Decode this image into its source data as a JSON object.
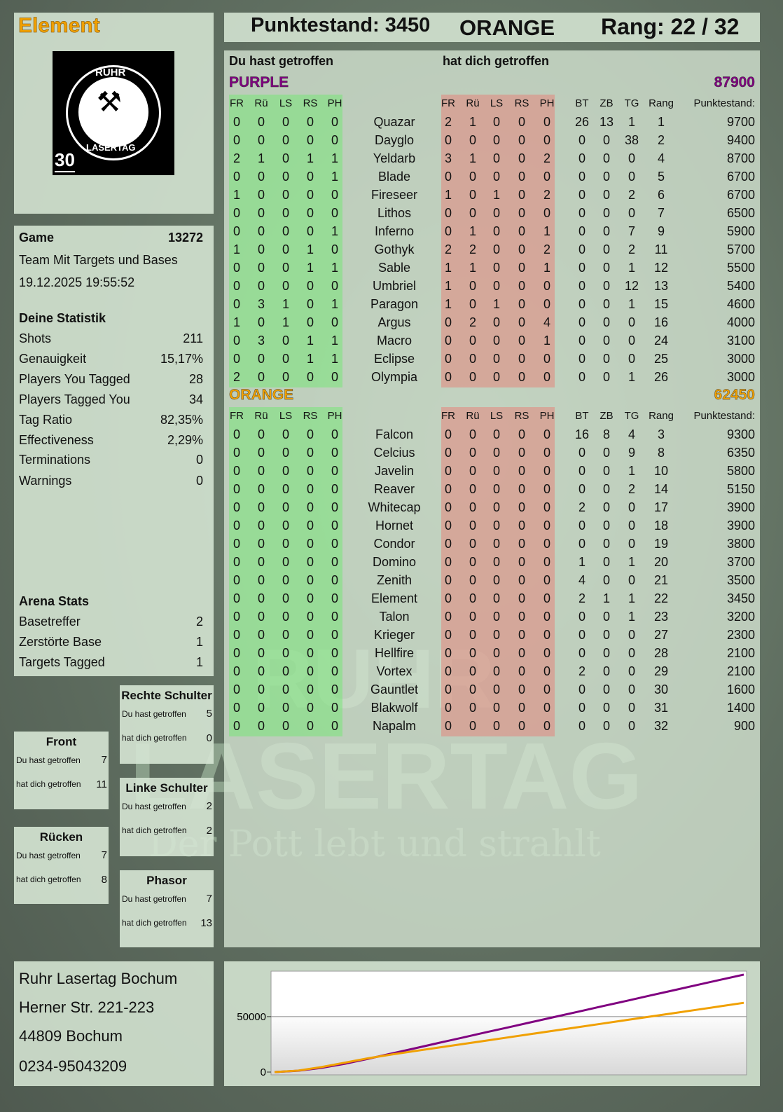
{
  "player": {
    "name": "Element",
    "logo_badge": "30",
    "logo_text_top": "RUHR",
    "logo_text_bottom": "LASERTAG"
  },
  "topbar": {
    "score": "Punktestand: 3450",
    "team": "ORANGE",
    "rank": "Rang: 22 / 32"
  },
  "main": {
    "you_hit_label": "Du hast getroffen",
    "hit_you_label": "hat dich getroffen",
    "columns_left": [
      "FR",
      "Rü",
      "LS",
      "RS",
      "PH"
    ],
    "columns_right": [
      "FR",
      "Rü",
      "LS",
      "RS",
      "PH"
    ],
    "columns_extra": [
      "BT",
      "ZB",
      "TG",
      "Rang",
      "Punktestand:"
    ],
    "teams": [
      {
        "name": "PURPLE",
        "score": "87900",
        "color": "#800080",
        "rows": [
          [
            "0",
            "0",
            "0",
            "0",
            "0",
            "Quazar",
            "2",
            "1",
            "0",
            "0",
            "0",
            "26",
            "13",
            "1",
            "1",
            "9700"
          ],
          [
            "0",
            "0",
            "0",
            "0",
            "0",
            "Dayglo",
            "0",
            "0",
            "0",
            "0",
            "0",
            "0",
            "0",
            "38",
            "2",
            "9400"
          ],
          [
            "2",
            "1",
            "0",
            "1",
            "1",
            "Yeldarb",
            "3",
            "1",
            "0",
            "0",
            "2",
            "0",
            "0",
            "0",
            "4",
            "8700"
          ],
          [
            "0",
            "0",
            "0",
            "0",
            "1",
            "Blade",
            "0",
            "0",
            "0",
            "0",
            "0",
            "0",
            "0",
            "0",
            "5",
            "6700"
          ],
          [
            "1",
            "0",
            "0",
            "0",
            "0",
            "Fireseer",
            "1",
            "0",
            "1",
            "0",
            "2",
            "0",
            "0",
            "2",
            "6",
            "6700"
          ],
          [
            "0",
            "0",
            "0",
            "0",
            "0",
            "Lithos",
            "0",
            "0",
            "0",
            "0",
            "0",
            "0",
            "0",
            "0",
            "7",
            "6500"
          ],
          [
            "0",
            "0",
            "0",
            "0",
            "1",
            "Inferno",
            "0",
            "1",
            "0",
            "0",
            "1",
            "0",
            "0",
            "7",
            "9",
            "5900"
          ],
          [
            "1",
            "0",
            "0",
            "1",
            "0",
            "Gothyk",
            "2",
            "2",
            "0",
            "0",
            "2",
            "0",
            "0",
            "2",
            "11",
            "5700"
          ],
          [
            "0",
            "0",
            "0",
            "1",
            "1",
            "Sable",
            "1",
            "1",
            "0",
            "0",
            "1",
            "0",
            "0",
            "1",
            "12",
            "5500"
          ],
          [
            "0",
            "0",
            "0",
            "0",
            "0",
            "Umbriel",
            "1",
            "0",
            "0",
            "0",
            "0",
            "0",
            "0",
            "12",
            "13",
            "5400"
          ],
          [
            "0",
            "3",
            "1",
            "0",
            "1",
            "Paragon",
            "1",
            "0",
            "1",
            "0",
            "0",
            "0",
            "0",
            "1",
            "15",
            "4600"
          ],
          [
            "1",
            "0",
            "1",
            "0",
            "0",
            "Argus",
            "0",
            "2",
            "0",
            "0",
            "4",
            "0",
            "0",
            "0",
            "16",
            "4000"
          ],
          [
            "0",
            "3",
            "0",
            "1",
            "1",
            "Macro",
            "0",
            "0",
            "0",
            "0",
            "1",
            "0",
            "0",
            "0",
            "24",
            "3100"
          ],
          [
            "0",
            "0",
            "0",
            "1",
            "1",
            "Eclipse",
            "0",
            "0",
            "0",
            "0",
            "0",
            "0",
            "0",
            "0",
            "25",
            "3000"
          ],
          [
            "2",
            "0",
            "0",
            "0",
            "0",
            "Olympia",
            "0",
            "0",
            "0",
            "0",
            "0",
            "0",
            "0",
            "1",
            "26",
            "3000"
          ]
        ]
      },
      {
        "name": "ORANGE",
        "score": "62450",
        "color": "#f0a000",
        "rows": [
          [
            "0",
            "0",
            "0",
            "0",
            "0",
            "Falcon",
            "0",
            "0",
            "0",
            "0",
            "0",
            "16",
            "8",
            "4",
            "3",
            "9300"
          ],
          [
            "0",
            "0",
            "0",
            "0",
            "0",
            "Celcius",
            "0",
            "0",
            "0",
            "0",
            "0",
            "0",
            "0",
            "9",
            "8",
            "6350"
          ],
          [
            "0",
            "0",
            "0",
            "0",
            "0",
            "Javelin",
            "0",
            "0",
            "0",
            "0",
            "0",
            "0",
            "0",
            "1",
            "10",
            "5800"
          ],
          [
            "0",
            "0",
            "0",
            "0",
            "0",
            "Reaver",
            "0",
            "0",
            "0",
            "0",
            "0",
            "0",
            "0",
            "2",
            "14",
            "5150"
          ],
          [
            "0",
            "0",
            "0",
            "0",
            "0",
            "Whitecap",
            "0",
            "0",
            "0",
            "0",
            "0",
            "2",
            "0",
            "0",
            "17",
            "3900"
          ],
          [
            "0",
            "0",
            "0",
            "0",
            "0",
            "Hornet",
            "0",
            "0",
            "0",
            "0",
            "0",
            "0",
            "0",
            "0",
            "18",
            "3900"
          ],
          [
            "0",
            "0",
            "0",
            "0",
            "0",
            "Condor",
            "0",
            "0",
            "0",
            "0",
            "0",
            "0",
            "0",
            "0",
            "19",
            "3800"
          ],
          [
            "0",
            "0",
            "0",
            "0",
            "0",
            "Domino",
            "0",
            "0",
            "0",
            "0",
            "0",
            "1",
            "0",
            "1",
            "20",
            "3700"
          ],
          [
            "0",
            "0",
            "0",
            "0",
            "0",
            "Zenith",
            "0",
            "0",
            "0",
            "0",
            "0",
            "4",
            "0",
            "0",
            "21",
            "3500"
          ],
          [
            "0",
            "0",
            "0",
            "0",
            "0",
            "Element",
            "0",
            "0",
            "0",
            "0",
            "0",
            "2",
            "1",
            "1",
            "22",
            "3450"
          ],
          [
            "0",
            "0",
            "0",
            "0",
            "0",
            "Talon",
            "0",
            "0",
            "0",
            "0",
            "0",
            "0",
            "0",
            "1",
            "23",
            "3200"
          ],
          [
            "0",
            "0",
            "0",
            "0",
            "0",
            "Krieger",
            "0",
            "0",
            "0",
            "0",
            "0",
            "0",
            "0",
            "0",
            "27",
            "2300"
          ],
          [
            "0",
            "0",
            "0",
            "0",
            "0",
            "Hellfire",
            "0",
            "0",
            "0",
            "0",
            "0",
            "0",
            "0",
            "0",
            "28",
            "2100"
          ],
          [
            "0",
            "0",
            "0",
            "0",
            "0",
            "Vortex",
            "0",
            "0",
            "0",
            "0",
            "0",
            "2",
            "0",
            "0",
            "29",
            "2100"
          ],
          [
            "0",
            "0",
            "0",
            "0",
            "0",
            "Gauntlet",
            "0",
            "0",
            "0",
            "0",
            "0",
            "0",
            "0",
            "0",
            "30",
            "1600"
          ],
          [
            "0",
            "0",
            "0",
            "0",
            "0",
            "Blakwolf",
            "0",
            "0",
            "0",
            "0",
            "0",
            "0",
            "0",
            "0",
            "31",
            "1400"
          ],
          [
            "0",
            "0",
            "0",
            "0",
            "0",
            "Napalm",
            "0",
            "0",
            "0",
            "0",
            "0",
            "0",
            "0",
            "0",
            "32",
            "900"
          ]
        ]
      }
    ]
  },
  "game": {
    "label": "Game",
    "id": "13272",
    "mode": "Team Mit Targets und Bases",
    "datetime": "19.12.2025 19:55:52"
  },
  "stats": {
    "title": "Deine Statistik",
    "items": [
      {
        "label": "Shots",
        "value": "211"
      },
      {
        "label": "Genauigkeit",
        "value": "15,17%"
      },
      {
        "label": "Players You Tagged",
        "value": "28"
      },
      {
        "label": "Players Tagged You",
        "value": "34"
      },
      {
        "label": "Tag Ratio",
        "value": "82,35%"
      },
      {
        "label": "Effectiveness",
        "value": "2,29%"
      },
      {
        "label": "Terminations",
        "value": "0"
      },
      {
        "label": "Warnings",
        "value": "0"
      }
    ]
  },
  "arena": {
    "title": "Arena Stats",
    "items": [
      {
        "label": "Basetreffer",
        "value": "2"
      },
      {
        "label": "Zerstörte Base",
        "value": "1"
      },
      {
        "label": "Targets Tagged",
        "value": "1"
      }
    ]
  },
  "zones": [
    {
      "name": "Rechte Schulter",
      "hit": "5",
      "hit_by": "0"
    },
    {
      "name": "Front",
      "hit": "7",
      "hit_by": "11"
    },
    {
      "name": "Linke Schulter",
      "hit": "2",
      "hit_by": "2"
    },
    {
      "name": "Rücken",
      "hit": "7",
      "hit_by": "8"
    },
    {
      "name": "Phasor",
      "hit": "7",
      "hit_by": "13"
    }
  ],
  "zone_labels": {
    "hit": "Du hast getroffen",
    "hit_by": "hat dich getroffen"
  },
  "address": {
    "line1": "Ruhr Lasertag Bochum",
    "line2": "Herner Str. 221-223",
    "line3": "44809 Bochum",
    "phone": "0234-95043209"
  },
  "watermark": {
    "line1": "RUHR",
    "line2": "LASERTAG",
    "slogan": "Der Pott lebt und strahlt"
  },
  "chart_data": {
    "type": "line",
    "ylim": [
      0,
      91000
    ],
    "yticks": [
      "0",
      "50000"
    ],
    "grid": true,
    "series": [
      {
        "color": "#800080",
        "values": [
          0,
          1200,
          3800,
          7500,
          12000,
          16800,
          21500,
          26300,
          31000,
          35800,
          40500,
          45260,
          50000,
          54700,
          59500,
          64200,
          69000,
          73700,
          78500,
          83200,
          87900
        ]
      },
      {
        "color": "#f0a000",
        "values": [
          0,
          1300,
          4500,
          8500,
          12500,
          15900,
          19000,
          22100,
          25200,
          28300,
          31400,
          34500,
          37600,
          40700,
          43800,
          46900,
          50000,
          53100,
          56200,
          59300,
          62450
        ]
      }
    ]
  }
}
